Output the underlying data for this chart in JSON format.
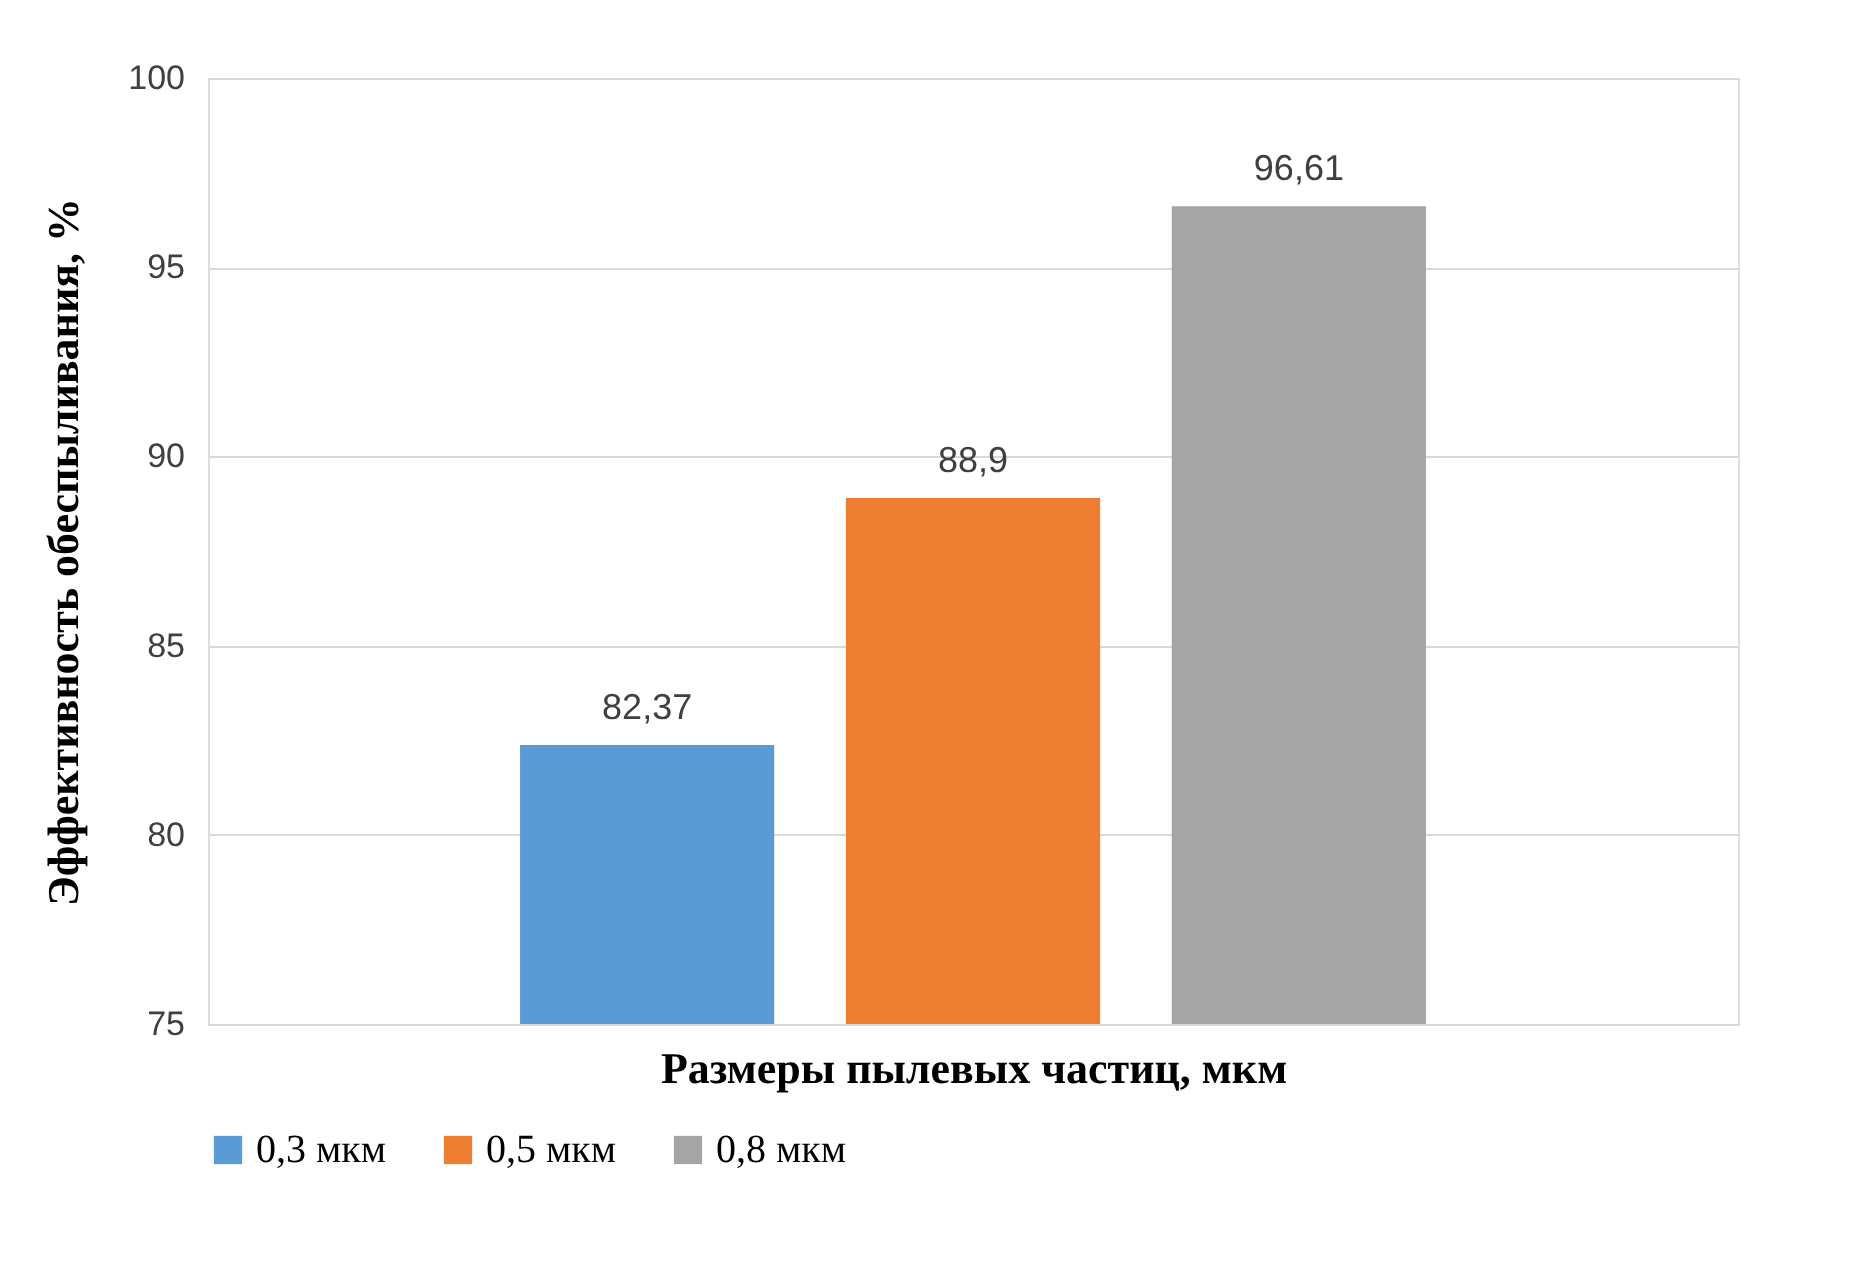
{
  "chart_data": {
    "type": "bar",
    "xlabel": "Размеры пылевых частиц,  мкм",
    "ylabel": "Эффективность обеспыливания, %",
    "categories": [
      null
    ],
    "series": [
      {
        "name": "0,3 мкм",
        "color": "#5b9bd5",
        "values": [
          82.37
        ],
        "value_labels": [
          "82,37"
        ]
      },
      {
        "name": "0,5 мкм",
        "color": "#ed7d31",
        "values": [
          88.9
        ],
        "value_labels": [
          "88,9"
        ]
      },
      {
        "name": "0,8 мкм",
        "color": "#a5a5a5",
        "values": [
          96.61
        ],
        "value_labels": [
          "96,61"
        ]
      }
    ],
    "ylim": [
      75,
      100
    ],
    "yticks": [
      75,
      80,
      85,
      90,
      95,
      100
    ],
    "grid": "y",
    "legend": "bottom"
  }
}
